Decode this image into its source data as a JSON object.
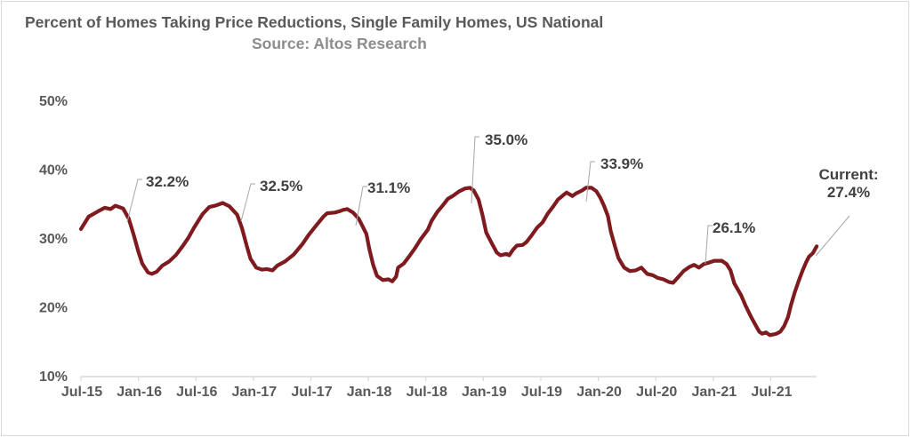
{
  "chart_data": {
    "type": "line",
    "title": "Percent of Homes Taking Price Reductions, Single Family Homes, US National",
    "subtitle": "Source: Altos Research",
    "xlabel": "",
    "ylabel": "",
    "ylim": [
      10,
      50
    ],
    "yticks": [
      10,
      20,
      30,
      40,
      50
    ],
    "ytick_labels": [
      "10%",
      "20%",
      "30%",
      "40%",
      "50%"
    ],
    "xtick_labels": [
      "Jul-15",
      "Jan-16",
      "Jul-16",
      "Jan-17",
      "Jul-17",
      "Jan-18",
      "Jul-18",
      "Jan-19",
      "Jul-19",
      "Jan-20",
      "Jul-20",
      "Jan-21",
      "Jul-21"
    ],
    "x_unit": "months since Jul-15",
    "xlim": [
      0,
      76.8
    ],
    "grid": false,
    "legend": "none",
    "series": [
      {
        "name": "Percent of Homes Taking Price Reductions",
        "color": "#7f1a1f",
        "points": [
          [
            0,
            31.3
          ],
          [
            0.8,
            33.1
          ],
          [
            1.8,
            33.9
          ],
          [
            2.5,
            34.4
          ],
          [
            3.1,
            34.2
          ],
          [
            3.6,
            34.7
          ],
          [
            4.4,
            34.3
          ],
          [
            5.0,
            32.8
          ],
          [
            5.5,
            30.5
          ],
          [
            6.0,
            28.0
          ],
          [
            6.4,
            26.3
          ],
          [
            7.0,
            25.0
          ],
          [
            7.4,
            24.8
          ],
          [
            7.9,
            25.1
          ],
          [
            8.5,
            26.0
          ],
          [
            9.2,
            26.6
          ],
          [
            9.9,
            27.5
          ],
          [
            10.6,
            28.8
          ],
          [
            11.2,
            30.0
          ],
          [
            11.8,
            31.5
          ],
          [
            12.7,
            33.5
          ],
          [
            13.4,
            34.5
          ],
          [
            14.0,
            34.7
          ],
          [
            14.8,
            35.1
          ],
          [
            15.5,
            34.6
          ],
          [
            16.3,
            33.4
          ],
          [
            16.8,
            31.5
          ],
          [
            17.3,
            28.9
          ],
          [
            17.7,
            27.0
          ],
          [
            18.3,
            25.7
          ],
          [
            18.9,
            25.4
          ],
          [
            19.4,
            25.5
          ],
          [
            20.0,
            25.3
          ],
          [
            20.5,
            26.0
          ],
          [
            21.3,
            26.6
          ],
          [
            22.2,
            27.6
          ],
          [
            23.1,
            29.1
          ],
          [
            23.8,
            30.5
          ],
          [
            24.6,
            31.9
          ],
          [
            25.3,
            33.1
          ],
          [
            25.7,
            33.6
          ],
          [
            26.5,
            33.7
          ],
          [
            27.0,
            33.9
          ],
          [
            27.4,
            34.1
          ],
          [
            27.8,
            34.2
          ],
          [
            28.4,
            33.7
          ],
          [
            29.0,
            32.8
          ],
          [
            29.4,
            31.7
          ],
          [
            29.8,
            30.6
          ],
          [
            30.1,
            28.4
          ],
          [
            30.5,
            26.1
          ],
          [
            30.9,
            24.5
          ],
          [
            31.5,
            23.9
          ],
          [
            32.1,
            24.0
          ],
          [
            32.5,
            23.7
          ],
          [
            32.9,
            24.4
          ],
          [
            33.1,
            25.7
          ],
          [
            33.7,
            26.3
          ],
          [
            34.3,
            27.4
          ],
          [
            34.9,
            28.6
          ],
          [
            35.5,
            29.9
          ],
          [
            36.2,
            31.2
          ],
          [
            36.6,
            32.5
          ],
          [
            37.2,
            33.8
          ],
          [
            37.8,
            34.8
          ],
          [
            38.3,
            35.7
          ],
          [
            38.8,
            36.1
          ],
          [
            39.5,
            36.8
          ],
          [
            40.1,
            37.2
          ],
          [
            40.6,
            37.3
          ],
          [
            41.0,
            36.9
          ],
          [
            41.5,
            35.6
          ],
          [
            41.9,
            33.4
          ],
          [
            42.3,
            30.8
          ],
          [
            42.9,
            29.2
          ],
          [
            43.4,
            27.9
          ],
          [
            43.8,
            27.5
          ],
          [
            44.4,
            27.7
          ],
          [
            44.7,
            27.5
          ],
          [
            45.1,
            28.3
          ],
          [
            45.5,
            28.9
          ],
          [
            46.1,
            29.0
          ],
          [
            46.5,
            29.4
          ],
          [
            47.1,
            30.5
          ],
          [
            47.6,
            31.5
          ],
          [
            48.2,
            32.3
          ],
          [
            48.7,
            33.5
          ],
          [
            49.3,
            34.6
          ],
          [
            49.8,
            35.6
          ],
          [
            50.4,
            36.3
          ],
          [
            50.7,
            36.6
          ],
          [
            51.3,
            36.1
          ],
          [
            51.7,
            36.5
          ],
          [
            52.3,
            36.9
          ],
          [
            52.7,
            37.3
          ],
          [
            53.3,
            37.3
          ],
          [
            53.8,
            36.8
          ],
          [
            54.2,
            35.9
          ],
          [
            54.6,
            34.7
          ],
          [
            55.0,
            33.2
          ],
          [
            55.3,
            31.0
          ],
          [
            55.7,
            29.0
          ],
          [
            56.1,
            27.1
          ],
          [
            56.7,
            25.7
          ],
          [
            57.3,
            25.2
          ],
          [
            57.9,
            25.3
          ],
          [
            58.2,
            25.5
          ],
          [
            58.5,
            25.7
          ],
          [
            59.1,
            24.8
          ],
          [
            59.7,
            24.6
          ],
          [
            60.2,
            24.2
          ],
          [
            60.8,
            24.0
          ],
          [
            61.4,
            23.6
          ],
          [
            61.8,
            23.5
          ],
          [
            62.4,
            24.4
          ],
          [
            62.9,
            25.2
          ],
          [
            63.5,
            25.8
          ],
          [
            64.0,
            26.1
          ],
          [
            64.5,
            25.7
          ],
          [
            65.0,
            26.2
          ],
          [
            65.5,
            26.4
          ],
          [
            66.1,
            26.7
          ],
          [
            66.5,
            26.7
          ],
          [
            66.9,
            26.7
          ],
          [
            67.4,
            26.2
          ],
          [
            67.8,
            25.3
          ],
          [
            68.2,
            23.4
          ],
          [
            68.9,
            21.7
          ],
          [
            69.4,
            20.1
          ],
          [
            70.0,
            18.4
          ],
          [
            70.4,
            17.4
          ],
          [
            70.8,
            16.4
          ],
          [
            71.1,
            16.1
          ],
          [
            71.5,
            16.3
          ],
          [
            71.9,
            15.9
          ],
          [
            72.3,
            16.0
          ],
          [
            72.6,
            16.1
          ],
          [
            73.0,
            16.4
          ],
          [
            73.4,
            17.2
          ],
          [
            73.8,
            18.5
          ],
          [
            74.1,
            20.2
          ],
          [
            74.5,
            22.1
          ],
          [
            74.9,
            23.7
          ],
          [
            75.3,
            25.2
          ],
          [
            75.7,
            26.5
          ],
          [
            76.0,
            27.3
          ],
          [
            76.4,
            27.8
          ],
          [
            76.8,
            28.8
          ]
        ]
      }
    ],
    "annotations": [
      {
        "label": "32.2%"
      },
      {
        "label": "32.5%"
      },
      {
        "label": "31.1%"
      },
      {
        "label": "35.0%"
      },
      {
        "label": "33.9%"
      },
      {
        "label": "26.1%"
      },
      {
        "label": "Current:",
        "label2": "27.4%"
      }
    ]
  }
}
